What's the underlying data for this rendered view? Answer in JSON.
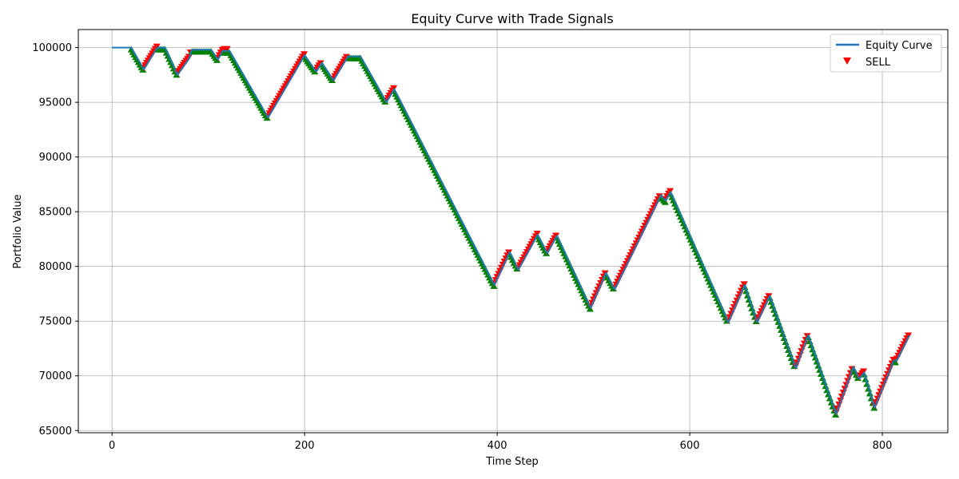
{
  "chart_data": {
    "type": "line",
    "title": "Equity Curve with Trade Signals",
    "xlabel": "Time Step",
    "ylabel": "Portfolio Value",
    "xlim": [
      -35,
      868
    ],
    "ylim": [
      64800,
      101650
    ],
    "xticks": [
      0,
      200,
      400,
      600,
      800
    ],
    "yticks": [
      65000,
      70000,
      75000,
      80000,
      85000,
      90000,
      95000,
      100000
    ],
    "grid": true,
    "legend_position": "top-right",
    "series": [
      {
        "name": "Equity Curve",
        "color": "#1f77b4",
        "x": [
          0,
          20,
          33,
          47,
          55,
          68,
          80,
          83,
          103,
          110,
          115,
          122,
          162,
          200,
          212,
          218,
          230,
          245,
          258,
          285,
          293,
          397,
          413,
          422,
          442,
          452,
          462,
          497,
          513,
          522,
          570,
          575,
          580,
          640,
          657,
          670,
          683,
          710,
          723,
          752,
          770,
          776,
          781,
          792,
          812,
          815,
          828
        ],
        "values": [
          100000,
          100000,
          98000,
          100000,
          100000,
          97500,
          99000,
          99800,
          99800,
          98900,
          99700,
          99700,
          93600,
          99300,
          97800,
          98600,
          97000,
          99200,
          99200,
          95000,
          96200,
          78300,
          81300,
          79700,
          82900,
          81200,
          82800,
          76200,
          79400,
          77900,
          86500,
          86000,
          86800,
          74900,
          78300,
          74900,
          77300,
          70700,
          73700,
          66500,
          70800,
          69700,
          70300,
          67100,
          71400,
          71400,
          73700
        ]
      },
      {
        "name": "SELL",
        "color": "#ff0000",
        "marker": "triangle-down"
      },
      {
        "name": "BUY",
        "color": "#008000",
        "marker": "triangle-up"
      }
    ],
    "legend": [
      "Equity Curve",
      "SELL"
    ]
  }
}
